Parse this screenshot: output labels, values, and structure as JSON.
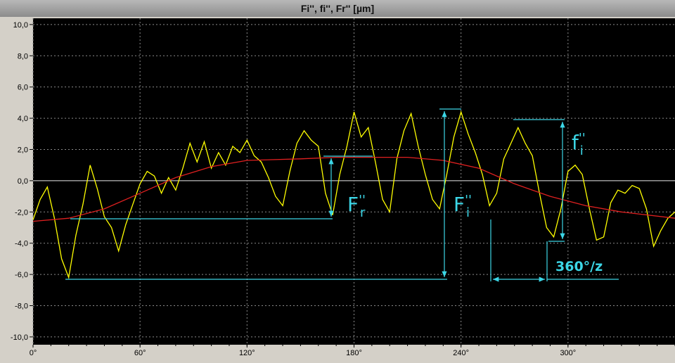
{
  "chart_data": {
    "type": "line",
    "title": "Fi'',  fi'',  Fr''     [µm]",
    "xlim": [
      0,
      360
    ],
    "ylim": [
      -10.5,
      10.4
    ],
    "xticks": [
      {
        "value": 0,
        "label": "0°"
      },
      {
        "value": 60,
        "label": "60°"
      },
      {
        "value": 120,
        "label": "120°"
      },
      {
        "value": 180,
        "label": "180°"
      },
      {
        "value": 240,
        "label": "240°"
      },
      {
        "value": 300,
        "label": "300°"
      }
    ],
    "yticks": [
      {
        "value": 10,
        "label": "10,0"
      },
      {
        "value": 8,
        "label": "8,0"
      },
      {
        "value": 6,
        "label": "6,0"
      },
      {
        "value": 4,
        "label": "4,0"
      },
      {
        "value": 2,
        "label": "2,0"
      },
      {
        "value": 0,
        "label": "0,0"
      },
      {
        "value": -2,
        "label": "-2,0"
      },
      {
        "value": -4,
        "label": "-4,0"
      },
      {
        "value": -6,
        "label": "-6,0"
      },
      {
        "value": -8,
        "label": "-8,0"
      },
      {
        "value": -10,
        "label": "-10,0"
      }
    ],
    "grid": true,
    "series": [
      {
        "color": "#ffff00",
        "x": [
          0,
          4,
          8,
          12,
          16,
          20,
          24,
          28,
          32,
          36,
          40,
          44,
          48,
          52,
          56,
          60,
          64,
          68,
          72,
          76,
          80,
          84,
          88,
          92,
          96,
          100,
          104,
          108,
          112,
          116,
          120,
          124,
          128,
          132,
          136,
          140,
          144,
          148,
          152,
          156,
          160,
          164,
          168,
          172,
          176,
          180,
          184,
          188,
          192,
          196,
          200,
          204,
          208,
          212,
          216,
          220,
          224,
          228,
          232,
          236,
          240,
          244,
          248,
          252,
          256,
          260,
          264,
          268,
          272,
          276,
          280,
          284,
          288,
          292,
          296,
          300,
          304,
          308,
          312,
          316,
          320,
          324,
          328,
          332,
          336,
          340,
          344,
          348,
          352,
          356,
          360
        ],
        "values": [
          -2.5,
          -1.2,
          -0.4,
          -2.4,
          -5.0,
          -6.2,
          -3.5,
          -1.5,
          1.0,
          -0.5,
          -2.3,
          -3.0,
          -4.5,
          -2.8,
          -1.5,
          -0.2,
          0.6,
          0.3,
          -0.8,
          0.2,
          -0.6,
          0.8,
          2.4,
          1.2,
          2.5,
          0.8,
          1.8,
          1.0,
          2.2,
          1.8,
          2.6,
          1.6,
          1.2,
          0.2,
          -1.0,
          -1.6,
          0.6,
          2.4,
          3.2,
          2.6,
          2.2,
          -0.8,
          -2.2,
          0.4,
          2.2,
          4.4,
          2.8,
          3.4,
          1.2,
          -1.2,
          -2.0,
          1.4,
          3.2,
          4.3,
          2.2,
          0.4,
          -1.2,
          -1.8,
          0.4,
          2.8,
          4.4,
          3.0,
          1.8,
          0.4,
          -1.6,
          -0.8,
          1.4,
          2.4,
          3.4,
          2.4,
          1.6,
          -0.8,
          -3.0,
          -3.6,
          -1.8,
          0.6,
          1.0,
          0.4,
          -1.8,
          -3.8,
          -3.6,
          -1.4,
          -0.6,
          -0.8,
          -0.3,
          -0.5,
          -1.8,
          -4.2,
          -3.2,
          -2.4,
          -2.0
        ]
      },
      {
        "color": "#e02020",
        "x": [
          0,
          20,
          40,
          60,
          80,
          100,
          120,
          150,
          170,
          190,
          210,
          230,
          250,
          270,
          290,
          310,
          330,
          360
        ],
        "values": [
          -2.6,
          -2.4,
          -1.8,
          -0.8,
          0.2,
          0.9,
          1.3,
          1.4,
          1.5,
          1.5,
          1.5,
          1.3,
          0.8,
          -0.2,
          -1.0,
          -1.6,
          -2.0,
          -2.4
        ]
      }
    ],
    "annotations": {
      "fr": {
        "text": "F",
        "sup": "''",
        "sub": "r"
      },
      "fi_total": {
        "text": "F",
        "sup": "''",
        "sub": "i"
      },
      "fi_tooth": {
        "text": "f",
        "sup": "''",
        "sub": "i"
      },
      "pitch": {
        "text": "360°/z"
      }
    }
  }
}
